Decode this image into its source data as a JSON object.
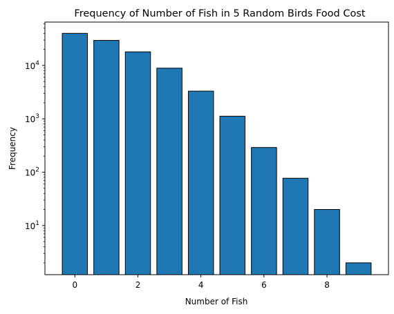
{
  "chart_data": {
    "type": "bar",
    "title": "Frequency of Number of Fish in 5 Random Birds Food Cost",
    "xlabel": "Number of Fish",
    "ylabel": "Frequency",
    "x": [
      0,
      1,
      2,
      3,
      4,
      5,
      6,
      7,
      8,
      9
    ],
    "values": [
      40000,
      29500,
      18000,
      8900,
      3300,
      1120,
      290,
      77,
      20,
      2
    ],
    "xlim": [
      -0.95,
      9.95
    ],
    "ylim": [
      1.2,
      65000
    ],
    "yscale": "log",
    "xticks": [
      0,
      2,
      4,
      6,
      8
    ],
    "xtick_labels": [
      "0",
      "2",
      "4",
      "6",
      "8"
    ],
    "yticks": [
      {
        "value": 10,
        "base": "10",
        "exp": "1"
      },
      {
        "value": 100,
        "base": "10",
        "exp": "2"
      },
      {
        "value": 1000,
        "base": "10",
        "exp": "3"
      },
      {
        "value": 10000,
        "base": "10",
        "exp": "4"
      }
    ],
    "bar_color": "#1f77b4",
    "edge_color": "#000000",
    "grid": false
  }
}
